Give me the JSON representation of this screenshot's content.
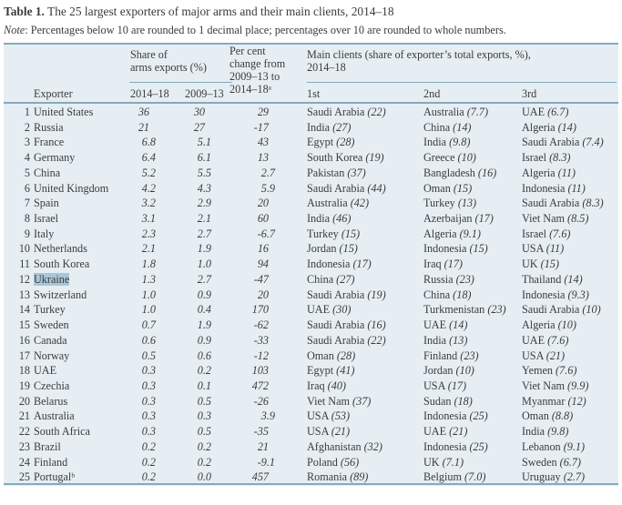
{
  "title": {
    "prefix": "Table 1.",
    "text": "The 25 largest exporters of major arms and their main clients, 2014–18"
  },
  "note": {
    "prefix": "Note",
    "text": ": Percentages below 10 are rounded to 1 decimal place; percentages over 10 are rounded to whole numbers."
  },
  "colors": {
    "table_bg": "#e6eef3",
    "rule": "#83aabf",
    "text": "#3b3b3b",
    "highlight": "#a9c6d8"
  },
  "header": {
    "share_group_line1": "Share of",
    "share_group_line2": "arms exports (%)",
    "pct_group_line1": "Per cent",
    "pct_group_line2": "change from",
    "pct_group_line3": "2009–13 to",
    "pct_group_line4": "2014–18ᵃ",
    "clients_group_line1": "Main clients (share of exporter’s total exports, %),",
    "clients_group_line2": "2014–18",
    "exporter": "Exporter",
    "col_2014_18": "2014–18",
    "col_2009_13": "2009–13",
    "col_1st": "1st",
    "col_2nd": "2nd",
    "col_3rd": "3rd"
  },
  "table": {
    "rows": [
      {
        "rank": "1",
        "exporter": "United States",
        "share_2014_18": "36",
        "share_2009_13": "30",
        "pct_change": "29",
        "clients": [
          {
            "name": "Saudi Arabia",
            "share": "22"
          },
          {
            "name": "Australia",
            "share": "7.7"
          },
          {
            "name": "UAE",
            "share": "6.7"
          }
        ]
      },
      {
        "rank": "2",
        "exporter": "Russia",
        "share_2014_18": "21",
        "share_2009_13": "27",
        "pct_change": "-17",
        "clients": [
          {
            "name": "India",
            "share": "27"
          },
          {
            "name": "China",
            "share": "14"
          },
          {
            "name": "Algeria",
            "share": "14"
          }
        ]
      },
      {
        "rank": "3",
        "exporter": "France",
        "share_2014_18": "6.8",
        "share_2009_13": "5.1",
        "pct_change": "43",
        "clients": [
          {
            "name": "Egypt",
            "share": "28"
          },
          {
            "name": "India",
            "share": "9.8"
          },
          {
            "name": "Saudi Arabia",
            "share": "7.4"
          }
        ]
      },
      {
        "rank": "4",
        "exporter": "Germany",
        "share_2014_18": "6.4",
        "share_2009_13": "6.1",
        "pct_change": "13",
        "clients": [
          {
            "name": "South Korea",
            "share": "19"
          },
          {
            "name": "Greece",
            "share": "10"
          },
          {
            "name": "Israel",
            "share": "8.3"
          }
        ]
      },
      {
        "rank": "5",
        "exporter": "China",
        "share_2014_18": "5.2",
        "share_2009_13": "5.5",
        "pct_change": "2.7",
        "clients": [
          {
            "name": "Pakistan",
            "share": "37"
          },
          {
            "name": "Bangladesh",
            "share": "16"
          },
          {
            "name": "Algeria",
            "share": "11"
          }
        ]
      },
      {
        "rank": "6",
        "exporter": "United Kingdom",
        "share_2014_18": "4.2",
        "share_2009_13": "4.3",
        "pct_change": "5.9",
        "clients": [
          {
            "name": "Saudi Arabia",
            "share": "44"
          },
          {
            "name": "Oman",
            "share": "15"
          },
          {
            "name": "Indonesia",
            "share": "11"
          }
        ]
      },
      {
        "rank": "7",
        "exporter": "Spain",
        "share_2014_18": "3.2",
        "share_2009_13": "2.9",
        "pct_change": "20",
        "clients": [
          {
            "name": "Australia",
            "share": "42"
          },
          {
            "name": "Turkey",
            "share": "13"
          },
          {
            "name": "Saudi Arabia",
            "share": "8.3"
          }
        ]
      },
      {
        "rank": "8",
        "exporter": "Israel",
        "share_2014_18": "3.1",
        "share_2009_13": "2.1",
        "pct_change": "60",
        "clients": [
          {
            "name": "India",
            "share": "46"
          },
          {
            "name": "Azerbaijan",
            "share": "17"
          },
          {
            "name": "Viet Nam",
            "share": "8.5"
          }
        ]
      },
      {
        "rank": "9",
        "exporter": "Italy",
        "share_2014_18": "2.3",
        "share_2009_13": "2.7",
        "pct_change": "-6.7",
        "clients": [
          {
            "name": "Turkey",
            "share": "15"
          },
          {
            "name": "Algeria",
            "share": "9.1"
          },
          {
            "name": "Israel",
            "share": "7.6"
          }
        ]
      },
      {
        "rank": "10",
        "exporter": "Netherlands",
        "share_2014_18": "2.1",
        "share_2009_13": "1.9",
        "pct_change": "16",
        "clients": [
          {
            "name": "Jordan",
            "share": "15"
          },
          {
            "name": "Indonesia",
            "share": "15"
          },
          {
            "name": "USA",
            "share": "11"
          }
        ]
      },
      {
        "rank": "11",
        "exporter": "South Korea",
        "share_2014_18": "1.8",
        "share_2009_13": "1.0",
        "pct_change": "94",
        "clients": [
          {
            "name": "Indonesia",
            "share": "17"
          },
          {
            "name": "Iraq",
            "share": "17"
          },
          {
            "name": "UK",
            "share": "15"
          }
        ]
      },
      {
        "rank": "12",
        "exporter": "Ukraine",
        "highlight": true,
        "share_2014_18": "1.3",
        "share_2009_13": "2.7",
        "pct_change": "-47",
        "clients": [
          {
            "name": "China",
            "share": "27"
          },
          {
            "name": "Russia",
            "share": "23"
          },
          {
            "name": "Thailand",
            "share": "14"
          }
        ]
      },
      {
        "rank": "13",
        "exporter": "Switzerland",
        "share_2014_18": "1.0",
        "share_2009_13": "0.9",
        "pct_change": "20",
        "clients": [
          {
            "name": "Saudi Arabia",
            "share": "19"
          },
          {
            "name": "China",
            "share": "18"
          },
          {
            "name": "Indonesia",
            "share": "9.3"
          }
        ]
      },
      {
        "rank": "14",
        "exporter": "Turkey",
        "share_2014_18": "1.0",
        "share_2009_13": "0.4",
        "pct_change": "170",
        "clients": [
          {
            "name": "UAE",
            "share": "30"
          },
          {
            "name": "Turkmenistan",
            "share": "23"
          },
          {
            "name": "Saudi Arabia",
            "share": "10"
          }
        ]
      },
      {
        "rank": "15",
        "exporter": "Sweden",
        "share_2014_18": "0.7",
        "share_2009_13": "1.9",
        "pct_change": "-62",
        "clients": [
          {
            "name": "Saudi Arabia",
            "share": "16"
          },
          {
            "name": "UAE",
            "share": "14"
          },
          {
            "name": "Algeria",
            "share": "10"
          }
        ]
      },
      {
        "rank": "16",
        "exporter": "Canada",
        "share_2014_18": "0.6",
        "share_2009_13": "0.9",
        "pct_change": "-33",
        "clients": [
          {
            "name": "Saudi Arabia",
            "share": "22"
          },
          {
            "name": "India",
            "share": "13"
          },
          {
            "name": "UAE",
            "share": "7.6"
          }
        ]
      },
      {
        "rank": "17",
        "exporter": "Norway",
        "share_2014_18": "0.5",
        "share_2009_13": "0.6",
        "pct_change": "-12",
        "clients": [
          {
            "name": "Oman",
            "share": "28"
          },
          {
            "name": "Finland",
            "share": "23"
          },
          {
            "name": "USA",
            "share": "21"
          }
        ]
      },
      {
        "rank": "18",
        "exporter": "UAE",
        "share_2014_18": "0.3",
        "share_2009_13": "0.2",
        "pct_change": "103",
        "clients": [
          {
            "name": "Egypt",
            "share": "41"
          },
          {
            "name": "Jordan",
            "share": "10"
          },
          {
            "name": "Yemen",
            "share": "7.6"
          }
        ]
      },
      {
        "rank": "19",
        "exporter": "Czechia",
        "share_2014_18": "0.3",
        "share_2009_13": "0.1",
        "pct_change": "472",
        "clients": [
          {
            "name": "Iraq",
            "share": "40"
          },
          {
            "name": "USA",
            "share": "17"
          },
          {
            "name": "Viet Nam",
            "share": "9.9"
          }
        ]
      },
      {
        "rank": "20",
        "exporter": "Belarus",
        "share_2014_18": "0.3",
        "share_2009_13": "0.5",
        "pct_change": "-26",
        "clients": [
          {
            "name": "Viet Nam",
            "share": "37"
          },
          {
            "name": "Sudan",
            "share": "18"
          },
          {
            "name": "Myanmar",
            "share": "12"
          }
        ]
      },
      {
        "rank": "21",
        "exporter": "Australia",
        "share_2014_18": "0.3",
        "share_2009_13": "0.3",
        "pct_change": "3.9",
        "clients": [
          {
            "name": "USA",
            "share": "53"
          },
          {
            "name": "Indonesia",
            "share": "25"
          },
          {
            "name": "Oman",
            "share": "8.8"
          }
        ]
      },
      {
        "rank": "22",
        "exporter": "South Africa",
        "share_2014_18": "0.3",
        "share_2009_13": "0.5",
        "pct_change": "-35",
        "clients": [
          {
            "name": "USA",
            "share": "21"
          },
          {
            "name": "UAE",
            "share": "21"
          },
          {
            "name": "India",
            "share": "9.8"
          }
        ]
      },
      {
        "rank": "23",
        "exporter": "Brazil",
        "share_2014_18": "0.2",
        "share_2009_13": "0.2",
        "pct_change": "21",
        "clients": [
          {
            "name": "Afghanistan",
            "share": "32"
          },
          {
            "name": "Indonesia",
            "share": "25"
          },
          {
            "name": "Lebanon",
            "share": "9.1"
          }
        ]
      },
      {
        "rank": "24",
        "exporter": "Finland",
        "share_2014_18": "0.2",
        "share_2009_13": "0.2",
        "pct_change": "-9.1",
        "clients": [
          {
            "name": "Poland",
            "share": "56"
          },
          {
            "name": "UK",
            "share": "7.1"
          },
          {
            "name": "Sweden",
            "share": "6.7"
          }
        ]
      },
      {
        "rank": "25",
        "exporter": "Portugalᵇ",
        "share_2014_18": "0.2",
        "share_2009_13": "0.0",
        "pct_change": "457",
        "clients": [
          {
            "name": "Romania",
            "share": "89"
          },
          {
            "name": "Belgium",
            "share": "7.0"
          },
          {
            "name": "Uruguay",
            "share": "2.7"
          }
        ]
      }
    ]
  }
}
